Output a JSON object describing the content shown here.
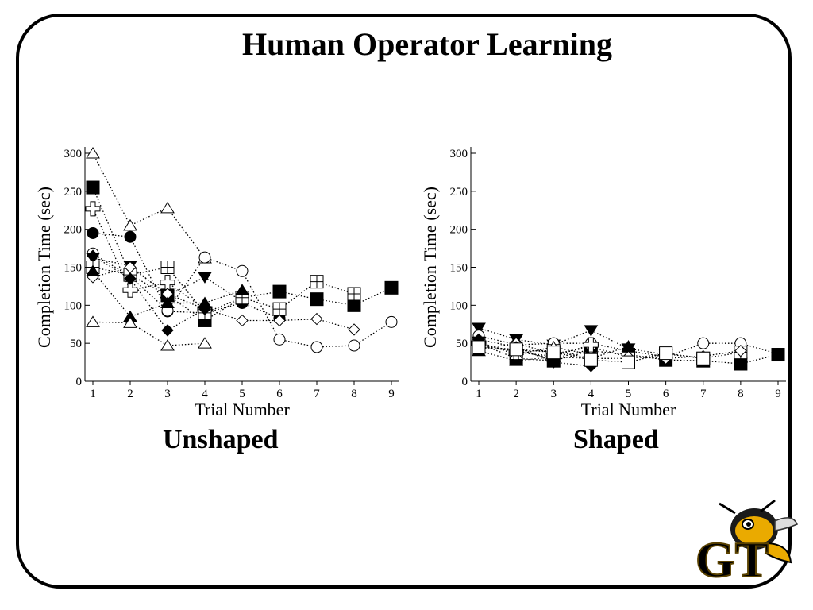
{
  "slide": {
    "title": "Human Operator Learning"
  },
  "chart_data": [
    {
      "type": "line",
      "caption": "Unshaped",
      "xlabel": "Trial Number",
      "ylabel": "Completion Time (sec)",
      "xlim": [
        1,
        9
      ],
      "ylim": [
        0,
        300
      ],
      "x_ticks": [
        1,
        2,
        3,
        4,
        5,
        6,
        7,
        8,
        9
      ],
      "y_ticks": [
        0,
        50,
        100,
        150,
        200,
        250,
        300
      ],
      "line_style": "dotted",
      "series": [
        {
          "marker": "open-triangle-up",
          "x": [
            1,
            2,
            3,
            4
          ],
          "y": [
            300,
            205,
            228,
            162
          ]
        },
        {
          "marker": "filled-square",
          "x": [
            1,
            2,
            3,
            4,
            5,
            6,
            7,
            8,
            9
          ],
          "y": [
            255,
            140,
            113,
            80,
            110,
            118,
            108,
            100,
            123
          ]
        },
        {
          "marker": "open-cross",
          "x": [
            1,
            2,
            3,
            4
          ],
          "y": [
            227,
            120,
            130,
            95
          ]
        },
        {
          "marker": "filled-circle",
          "x": [
            1,
            2,
            3,
            4,
            5,
            6
          ],
          "y": [
            195,
            190,
            92,
            90,
            103,
            83
          ]
        },
        {
          "marker": "open-circle",
          "x": [
            1,
            2,
            3,
            4,
            5,
            6,
            7,
            8,
            9
          ],
          "y": [
            168,
            138,
            93,
            163,
            145,
            55,
            45,
            47,
            78
          ]
        },
        {
          "marker": "filled-triangle-down",
          "x": [
            1,
            2,
            3,
            4,
            5
          ],
          "y": [
            162,
            152,
            113,
            137,
            105
          ]
        },
        {
          "marker": "open-square-cross",
          "x": [
            1,
            2,
            3,
            4,
            5,
            6,
            7,
            8
          ],
          "y": [
            150,
            140,
            150,
            90,
            110,
            95,
            131,
            115
          ]
        },
        {
          "marker": "open-diamond",
          "x": [
            1,
            2,
            3,
            4,
            5,
            6,
            7,
            8
          ],
          "y": [
            137,
            150,
            115,
            95,
            80,
            80,
            82,
            68
          ]
        },
        {
          "marker": "filled-diamond",
          "x": [
            1,
            2,
            3,
            4
          ],
          "y": [
            165,
            135,
            67,
            95
          ]
        },
        {
          "marker": "filled-triangle-up",
          "x": [
            1,
            2,
            3,
            4,
            5
          ],
          "y": [
            145,
            85,
            103,
            103,
            120
          ]
        },
        {
          "marker": "open-triangle-up",
          "x": [
            1,
            2,
            3,
            4
          ],
          "y": [
            78,
            77,
            47,
            50
          ]
        }
      ]
    },
    {
      "type": "line",
      "caption": "Shaped",
      "xlabel": "Trial Number",
      "ylabel": "Completion Time (sec)",
      "xlim": [
        1,
        9
      ],
      "ylim": [
        0,
        300
      ],
      "x_ticks": [
        1,
        2,
        3,
        4,
        5,
        6,
        7,
        8,
        9
      ],
      "y_ticks": [
        0,
        50,
        100,
        150,
        200,
        250,
        300
      ],
      "line_style": "dotted",
      "series": [
        {
          "marker": "filled-triangle-down",
          "x": [
            1,
            2,
            3,
            4,
            5,
            6
          ],
          "y": [
            70,
            55,
            48,
            67,
            43,
            35
          ]
        },
        {
          "marker": "open-circle",
          "x": [
            1,
            2,
            3,
            4,
            5,
            6,
            7,
            8,
            9
          ],
          "y": [
            60,
            48,
            50,
            50,
            40,
            32,
            50,
            50,
            36
          ]
        },
        {
          "marker": "filled-square",
          "x": [
            1,
            2,
            3,
            4,
            5,
            6,
            7,
            8,
            9
          ],
          "y": [
            50,
            30,
            27,
            40,
            35,
            28,
            27,
            23,
            35
          ]
        },
        {
          "marker": "open-square-cross",
          "x": [
            1,
            2,
            3,
            4,
            5,
            6,
            7,
            8
          ],
          "y": [
            48,
            40,
            40,
            30,
            30,
            36,
            30,
            38
          ]
        },
        {
          "marker": "filled-circle",
          "x": [
            1,
            2,
            3,
            4
          ],
          "y": [
            45,
            40,
            30,
            42
          ]
        },
        {
          "marker": "open-diamond",
          "x": [
            1,
            2,
            3,
            4,
            5,
            6,
            7,
            8
          ],
          "y": [
            42,
            50,
            36,
            45,
            32,
            30,
            33,
            40
          ]
        },
        {
          "marker": "filled-triangle-up",
          "x": [
            1,
            2,
            3,
            4,
            5
          ],
          "y": [
            40,
            27,
            32,
            30,
            46
          ]
        },
        {
          "marker": "open-triangle-up",
          "x": [
            1,
            2,
            3,
            4
          ],
          "y": [
            52,
            35,
            45,
            35
          ]
        },
        {
          "marker": "open-cross",
          "x": [
            1,
            2,
            3,
            4
          ],
          "y": [
            50,
            38,
            33,
            48
          ]
        },
        {
          "marker": "filled-diamond",
          "x": [
            1,
            2,
            3,
            4
          ],
          "y": [
            55,
            45,
            25,
            20
          ]
        },
        {
          "marker": "open-square",
          "x": [
            1,
            2,
            3,
            4,
            5,
            6,
            7
          ],
          "y": [
            45,
            42,
            38,
            28,
            25,
            37,
            30
          ]
        }
      ]
    }
  ],
  "logo": {
    "label": "GT",
    "color": "#EAAA00"
  }
}
